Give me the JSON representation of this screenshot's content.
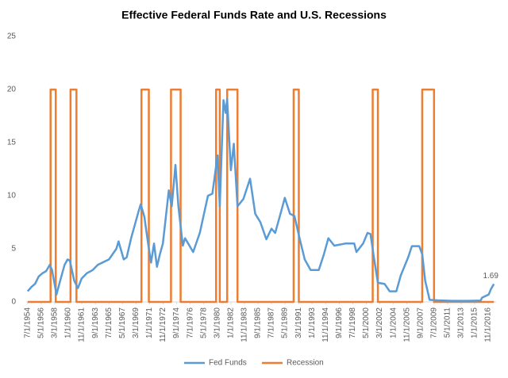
{
  "chart_data": {
    "type": "line",
    "title": "Effective Federal Funds Rate and U.S. Recessions",
    "xlim": [
      1954.3,
      2017.9
    ],
    "xticks": [
      {
        "value": 1954.5,
        "label": "7/1/1954"
      },
      {
        "value": 1956.33,
        "label": "5/1/1956"
      },
      {
        "value": 1958.17,
        "label": "3/1/1958"
      },
      {
        "value": 1960,
        "label": "1/1/1960"
      },
      {
        "value": 1961.83,
        "label": "11/1/1961"
      },
      {
        "value": 1963.67,
        "label": "9/1/1963"
      },
      {
        "value": 1965.5,
        "label": "7/1/1965"
      },
      {
        "value": 1967.33,
        "label": "5/1/1967"
      },
      {
        "value": 1969.17,
        "label": "3/1/1969"
      },
      {
        "value": 1971,
        "label": "1/1/1971"
      },
      {
        "value": 1972.83,
        "label": "11/1/1972"
      },
      {
        "value": 1974.67,
        "label": "9/1/1974"
      },
      {
        "value": 1976.5,
        "label": "7/1/1976"
      },
      {
        "value": 1978.33,
        "label": "5/1/1978"
      },
      {
        "value": 1980.17,
        "label": "3/1/1980"
      },
      {
        "value": 1982,
        "label": "1/1/1982"
      },
      {
        "value": 1983.83,
        "label": "11/1/1983"
      },
      {
        "value": 1985.67,
        "label": "9/1/1985"
      },
      {
        "value": 1987.5,
        "label": "7/1/1987"
      },
      {
        "value": 1989.33,
        "label": "5/1/1989"
      },
      {
        "value": 1991.17,
        "label": "3/1/1991"
      },
      {
        "value": 1993,
        "label": "1/1/1993"
      },
      {
        "value": 1994.83,
        "label": "11/1/1994"
      },
      {
        "value": 1996.67,
        "label": "9/1/1996"
      },
      {
        "value": 1998.5,
        "label": "7/1/1998"
      },
      {
        "value": 2000.33,
        "label": "5/1/2000"
      },
      {
        "value": 2002.17,
        "label": "3/1/2002"
      },
      {
        "value": 2004,
        "label": "1/1/2004"
      },
      {
        "value": 2005.83,
        "label": "11/1/2005"
      },
      {
        "value": 2007.67,
        "label": "9/1/2007"
      },
      {
        "value": 2009.5,
        "label": "7/1/2009"
      },
      {
        "value": 2011.33,
        "label": "5/1/2011"
      },
      {
        "value": 2013.17,
        "label": "3/1/2013"
      },
      {
        "value": 2015,
        "label": "1/1/2015"
      },
      {
        "value": 2016.83,
        "label": "11/1/2016"
      }
    ],
    "ylim": [
      0,
      25
    ],
    "yticks": [
      0,
      5,
      10,
      15,
      20,
      25
    ],
    "legend": "bottom",
    "series": [
      {
        "name": "Fed Funds",
        "color": "#5b9bd5",
        "x": [
          1954.5,
          1955.0,
          1955.5,
          1956.0,
          1956.5,
          1957.0,
          1957.5,
          1957.8,
          1958.4,
          1958.9,
          1959.5,
          1959.9,
          1960.2,
          1960.8,
          1961.3,
          1961.8,
          1962.5,
          1963.3,
          1964.0,
          1965.5,
          1966.5,
          1966.8,
          1967.5,
          1967.9,
          1968.5,
          1969.5,
          1969.8,
          1970.3,
          1970.8,
          1971.2,
          1971.6,
          1972.0,
          1972.4,
          1972.8,
          1973.6,
          1974.0,
          1974.5,
          1974.9,
          1975.5,
          1975.8,
          1976.9,
          1977.8,
          1978.9,
          1979.5,
          1980.2,
          1980.5,
          1981.0,
          1981.3,
          1981.5,
          1982.0,
          1982.4,
          1982.9,
          1983.7,
          1984.6,
          1985.3,
          1986.0,
          1986.8,
          1987.5,
          1988.0,
          1988.8,
          1989.3,
          1990.0,
          1990.6,
          1991.3,
          1992.0,
          1992.8,
          1993.9,
          1994.6,
          1995.2,
          1996.0,
          1997.5,
          1998.7,
          1999.0,
          1999.9,
          2000.5,
          2000.9,
          2001.4,
          2001.9,
          2002.8,
          2003.5,
          2004.4,
          2005.0,
          2006.0,
          2006.5,
          2007.5,
          2007.9,
          2008.3,
          2008.9,
          2010.0,
          2012.0,
          2014.0,
          2015.8,
          2016.0,
          2016.9,
          2017.2,
          2017.6
        ],
        "values": [
          1.0,
          1.4,
          1.7,
          2.4,
          2.7,
          2.9,
          3.5,
          3.0,
          0.7,
          2.0,
          3.5,
          4.0,
          3.9,
          2.0,
          1.3,
          2.2,
          2.7,
          3.0,
          3.5,
          4.0,
          5.0,
          5.7,
          4.0,
          4.2,
          6.0,
          8.5,
          9.2,
          8.0,
          5.5,
          3.7,
          5.5,
          3.3,
          4.5,
          5.5,
          10.5,
          9.0,
          12.9,
          9.0,
          5.3,
          6.0,
          4.7,
          6.5,
          10.0,
          10.2,
          13.8,
          9.0,
          19.0,
          17.8,
          19.1,
          12.4,
          14.9,
          9.0,
          9.7,
          11.6,
          8.3,
          7.5,
          5.9,
          6.9,
          6.5,
          8.5,
          9.8,
          8.3,
          8.1,
          6.0,
          4.0,
          3.0,
          3.0,
          4.5,
          6.0,
          5.3,
          5.5,
          5.5,
          4.7,
          5.5,
          6.5,
          6.4,
          4.0,
          1.8,
          1.7,
          1.0,
          1.0,
          2.5,
          4.2,
          5.25,
          5.25,
          4.5,
          2.0,
          0.2,
          0.15,
          0.1,
          0.1,
          0.13,
          0.4,
          0.7,
          1.2,
          1.69
        ]
      },
      {
        "name": "Recession",
        "color": "#ed7d31",
        "x": [
          1954.5,
          1957.6,
          1957.6,
          1958.3,
          1958.3,
          1960.3,
          1960.3,
          1961.1,
          1961.1,
          1969.9,
          1969.9,
          1970.9,
          1970.9,
          1973.9,
          1973.9,
          1975.2,
          1975.2,
          1980.0,
          1980.0,
          1980.5,
          1980.5,
          1981.5,
          1981.5,
          1982.9,
          1982.9,
          1990.5,
          1990.5,
          1991.2,
          1991.2,
          2001.2,
          2001.2,
          2001.9,
          2001.9,
          2007.9,
          2007.9,
          2009.5,
          2009.5,
          2017.6
        ],
        "values": [
          0,
          0,
          20,
          20,
          0,
          0,
          20,
          20,
          0,
          0,
          20,
          20,
          0,
          0,
          20,
          20,
          0,
          0,
          20,
          20,
          0,
          0,
          20,
          20,
          0,
          0,
          20,
          20,
          0,
          0,
          20,
          20,
          0,
          0,
          20,
          20,
          0,
          0
        ]
      }
    ]
  }
}
